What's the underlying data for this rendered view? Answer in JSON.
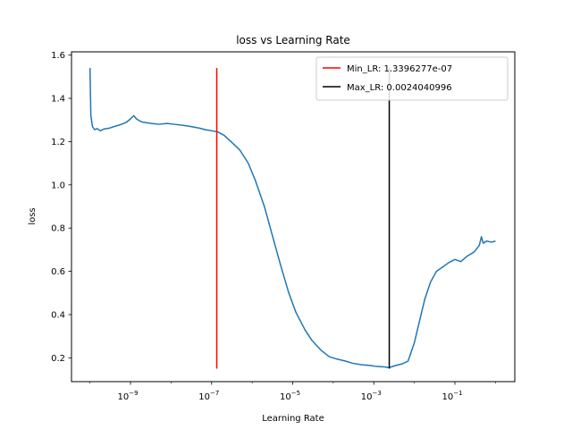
{
  "chart_data": {
    "type": "line",
    "title": "loss vs Learning Rate",
    "xlabel": "Learning Rate",
    "ylabel": "loss",
    "xscale": "log",
    "xlim": [
      3.5e-11,
      3.0
    ],
    "ylim": [
      0.09,
      1.615
    ],
    "grid": false,
    "legend_position": "top-right",
    "x_ticks": [
      {
        "value": 1e-09,
        "base": "10",
        "exp": "−9"
      },
      {
        "value": 1e-07,
        "base": "10",
        "exp": "−7"
      },
      {
        "value": 1e-05,
        "base": "10",
        "exp": "−5"
      },
      {
        "value": 0.001,
        "base": "10",
        "exp": "−3"
      },
      {
        "value": 0.1,
        "base": "10",
        "exp": "−1"
      }
    ],
    "y_ticks": [
      {
        "value": 0.2,
        "label": "0.2"
      },
      {
        "value": 0.4,
        "label": "0.4"
      },
      {
        "value": 0.6,
        "label": "0.6"
      },
      {
        "value": 0.8,
        "label": "0.8"
      },
      {
        "value": 1.0,
        "label": "1.0"
      },
      {
        "value": 1.2,
        "label": "1.2"
      },
      {
        "value": 1.4,
        "label": "1.4"
      },
      {
        "value": 1.6,
        "label": "1.6"
      }
    ],
    "series": [
      {
        "name": "",
        "color": "#1f77b4",
        "points": [
          [
            1e-10,
            1.54
          ],
          [
            1.05e-10,
            1.32
          ],
          [
            1.15e-10,
            1.27
          ],
          [
            1.3e-10,
            1.255
          ],
          [
            1.5e-10,
            1.26
          ],
          [
            1.8e-10,
            1.25
          ],
          [
            2.2e-10,
            1.258
          ],
          [
            3e-10,
            1.262
          ],
          [
            4e-10,
            1.27
          ],
          [
            5e-10,
            1.275
          ],
          [
            6e-10,
            1.28
          ],
          [
            8e-10,
            1.29
          ],
          [
            1e-09,
            1.305
          ],
          [
            1.2e-09,
            1.32
          ],
          [
            1.4e-09,
            1.305
          ],
          [
            1.7e-09,
            1.295
          ],
          [
            2e-09,
            1.29
          ],
          [
            3e-09,
            1.285
          ],
          [
            5e-09,
            1.28
          ],
          [
            8e-09,
            1.284
          ],
          [
            1.2e-08,
            1.28
          ],
          [
            2e-08,
            1.275
          ],
          [
            3e-08,
            1.27
          ],
          [
            5e-08,
            1.262
          ],
          [
            7e-08,
            1.255
          ],
          [
            1e-07,
            1.25
          ],
          [
            1.4e-07,
            1.245
          ],
          [
            2e-07,
            1.23
          ],
          [
            3e-07,
            1.2
          ],
          [
            5e-07,
            1.16
          ],
          [
            8e-07,
            1.1
          ],
          [
            1.2e-06,
            1.02
          ],
          [
            2e-06,
            0.9
          ],
          [
            3e-06,
            0.78
          ],
          [
            5e-06,
            0.63
          ],
          [
            8e-06,
            0.5
          ],
          [
            1.2e-05,
            0.41
          ],
          [
            2e-05,
            0.33
          ],
          [
            3e-05,
            0.28
          ],
          [
            5e-05,
            0.235
          ],
          [
            8e-05,
            0.205
          ],
          [
            0.00012,
            0.195
          ],
          [
            0.0002,
            0.185
          ],
          [
            0.0003,
            0.175
          ],
          [
            0.0005,
            0.168
          ],
          [
            0.0008,
            0.165
          ],
          [
            0.0012,
            0.16
          ],
          [
            0.0018,
            0.158
          ],
          [
            0.0024,
            0.155
          ],
          [
            0.0035,
            0.165
          ],
          [
            0.005,
            0.172
          ],
          [
            0.007,
            0.185
          ],
          [
            0.01,
            0.27
          ],
          [
            0.013,
            0.36
          ],
          [
            0.018,
            0.47
          ],
          [
            0.025,
            0.55
          ],
          [
            0.035,
            0.6
          ],
          [
            0.05,
            0.62
          ],
          [
            0.07,
            0.64
          ],
          [
            0.1,
            0.655
          ],
          [
            0.14,
            0.645
          ],
          [
            0.2,
            0.67
          ],
          [
            0.3,
            0.69
          ],
          [
            0.4,
            0.72
          ],
          [
            0.45,
            0.76
          ],
          [
            0.5,
            0.73
          ],
          [
            0.6,
            0.74
          ],
          [
            0.8,
            0.735
          ],
          [
            1.0,
            0.74
          ]
        ]
      }
    ],
    "vlines": [
      {
        "name": "Min_LR: 1.3396277e-07",
        "x": 1.3396277e-07,
        "ymin": 0.15,
        "ymax": 1.54,
        "color": "#ff0000"
      },
      {
        "name": "Max_LR: 0.0024040996",
        "x": 0.0024040996,
        "ymin": 0.15,
        "ymax": 1.54,
        "color": "#000000"
      }
    ]
  }
}
